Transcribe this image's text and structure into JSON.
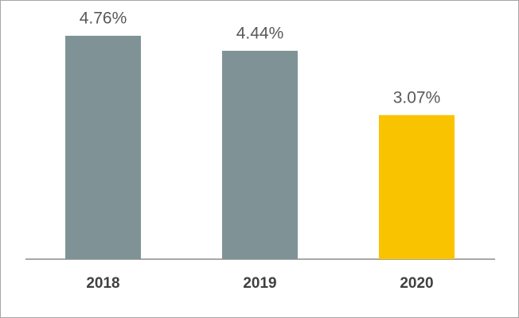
{
  "chart_data": {
    "type": "bar",
    "categories": [
      "2018",
      "2019",
      "2020"
    ],
    "values": [
      4.76,
      4.44,
      3.07
    ],
    "value_labels": [
      "4.76%",
      "4.44%",
      "3.07%"
    ],
    "colors": [
      "#7f9396",
      "#7f9396",
      "#f9c300"
    ]
  }
}
